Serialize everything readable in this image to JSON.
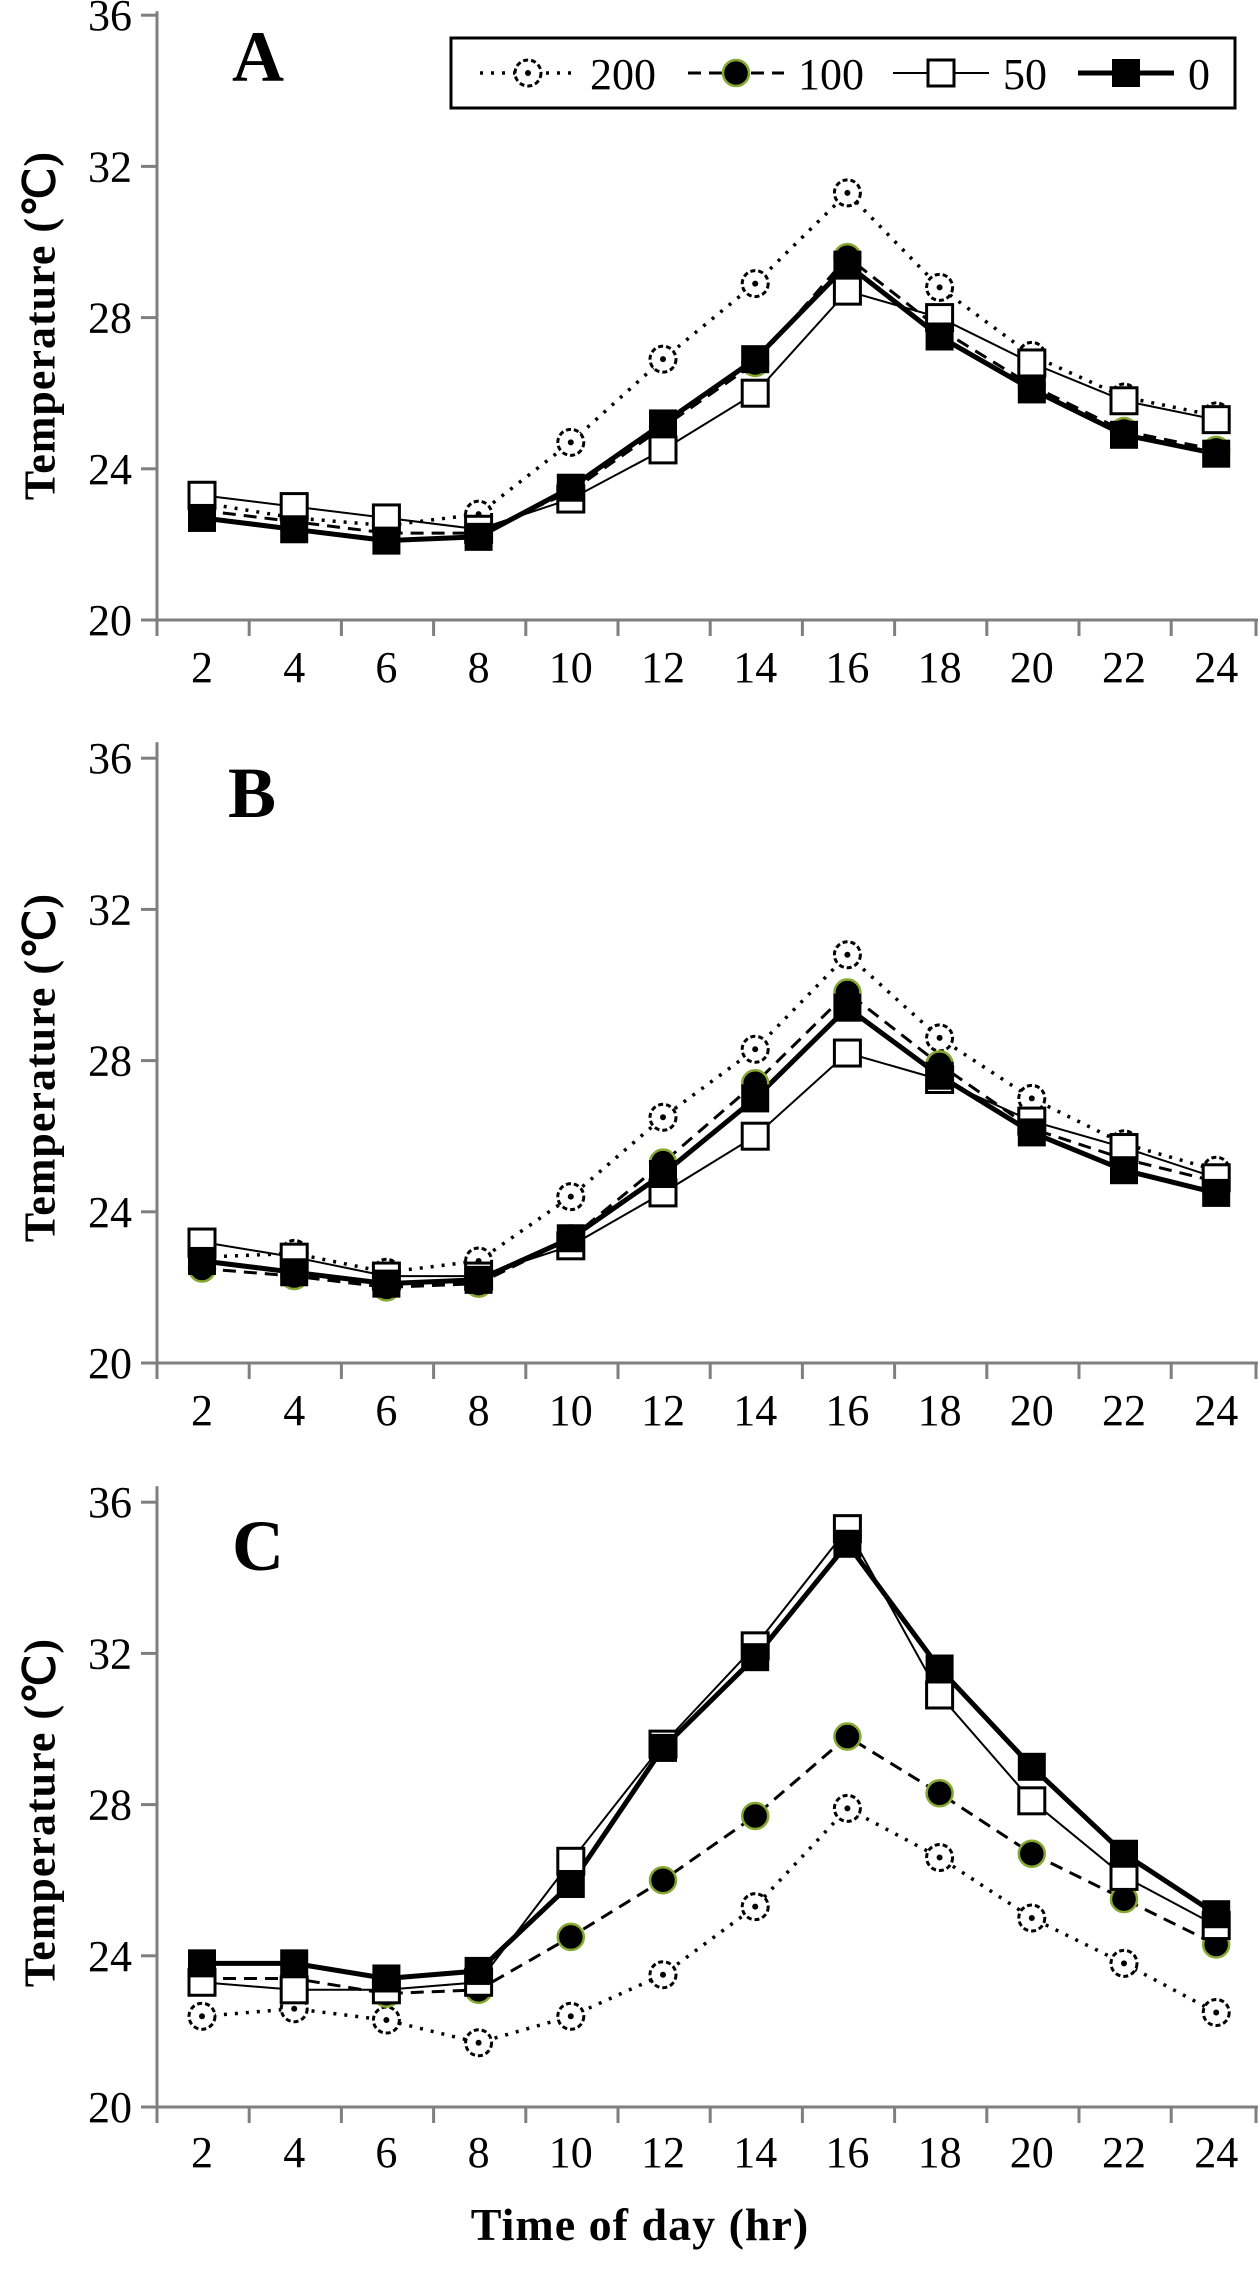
{
  "figure": {
    "background": "#ffffff",
    "axis_color": "#7f7f7f",
    "ink_color": "#000000",
    "marker_accent_color": "#86a832"
  },
  "axes": {
    "y_title": "Temperature (℃)",
    "x_title": "Time of day  (hr)",
    "y_tick_labels": [
      "36",
      "32",
      "28",
      "24",
      "20"
    ],
    "y_ticks": [
      36,
      32,
      28,
      24,
      20
    ],
    "x_tick_labels": [
      "2",
      "4",
      "6",
      "8",
      "10",
      "12",
      "14",
      "16",
      "18",
      "20",
      "22",
      "24"
    ],
    "ylim": [
      20,
      36
    ]
  },
  "legend": {
    "items": [
      {
        "label": "200",
        "series": "200"
      },
      {
        "label": "100",
        "series": "100"
      },
      {
        "label": "50",
        "series": "50"
      },
      {
        "label": "0",
        "series": "0"
      }
    ]
  },
  "panels": {
    "a_letter": "A",
    "b_letter": "B",
    "c_letter": "C"
  },
  "chart_data": [
    {
      "type": "line",
      "panel": "A",
      "xlabel": "Time of day (hr)",
      "ylabel": "Temperature (℃)",
      "ylim": [
        20,
        36
      ],
      "x": [
        2,
        4,
        6,
        8,
        10,
        12,
        14,
        16,
        18,
        20,
        22,
        24
      ],
      "series": [
        {
          "name": "200",
          "line": "dotted",
          "marker": "open-circle-dot",
          "values": [
            23.1,
            22.7,
            22.5,
            22.8,
            24.7,
            26.9,
            28.9,
            31.3,
            28.8,
            27.0,
            25.9,
            25.4
          ]
        },
        {
          "name": "100",
          "line": "dashed",
          "marker": "filled-circle",
          "values": [
            22.9,
            22.6,
            22.3,
            22.3,
            23.4,
            25.1,
            26.8,
            29.6,
            27.7,
            26.2,
            25.0,
            24.5
          ]
        },
        {
          "name": "50",
          "line": "solid-thin",
          "marker": "open-square",
          "values": [
            23.3,
            23.0,
            22.7,
            22.4,
            23.2,
            24.5,
            26.0,
            28.7,
            28.0,
            26.8,
            25.8,
            25.3
          ]
        },
        {
          "name": "0",
          "line": "solid-thick",
          "marker": "filled-square",
          "values": [
            22.7,
            22.4,
            22.1,
            22.2,
            23.5,
            25.2,
            26.9,
            29.4,
            27.5,
            26.1,
            24.9,
            24.4
          ]
        }
      ]
    },
    {
      "type": "line",
      "panel": "B",
      "xlabel": "Time of day (hr)",
      "ylabel": "Temperature (℃)",
      "ylim": [
        20,
        36
      ],
      "x": [
        2,
        4,
        6,
        8,
        10,
        12,
        14,
        16,
        18,
        20,
        22,
        24
      ],
      "series": [
        {
          "name": "200",
          "line": "dotted",
          "marker": "open-circle-dot",
          "values": [
            22.8,
            22.9,
            22.4,
            22.7,
            24.4,
            26.5,
            28.3,
            30.8,
            28.6,
            27.0,
            25.8,
            25.1
          ]
        },
        {
          "name": "100",
          "line": "dashed",
          "marker": "filled-circle",
          "values": [
            22.5,
            22.3,
            22.0,
            22.1,
            23.3,
            25.3,
            27.4,
            29.8,
            27.9,
            26.2,
            25.4,
            24.8
          ]
        },
        {
          "name": "50",
          "line": "solid-thin",
          "marker": "open-square",
          "values": [
            23.2,
            22.8,
            22.3,
            22.3,
            23.1,
            24.5,
            26.0,
            28.2,
            27.5,
            26.4,
            25.7,
            24.9
          ]
        },
        {
          "name": "0",
          "line": "solid-thick",
          "marker": "filled-square",
          "values": [
            22.7,
            22.4,
            22.1,
            22.2,
            23.3,
            25.0,
            27.0,
            29.4,
            27.6,
            26.1,
            25.1,
            24.5
          ]
        }
      ]
    },
    {
      "type": "line",
      "panel": "C",
      "xlabel": "Time of day (hr)",
      "ylabel": "Temperature (℃)",
      "ylim": [
        20,
        36
      ],
      "x": [
        2,
        4,
        6,
        8,
        10,
        12,
        14,
        16,
        18,
        20,
        22,
        24
      ],
      "series": [
        {
          "name": "200",
          "line": "dotted",
          "marker": "open-circle-dot",
          "values": [
            22.4,
            22.6,
            22.3,
            21.7,
            22.4,
            23.5,
            25.3,
            27.9,
            26.6,
            25.0,
            23.8,
            22.5
          ]
        },
        {
          "name": "100",
          "line": "dashed",
          "marker": "filled-circle",
          "values": [
            23.4,
            23.4,
            23.0,
            23.1,
            24.5,
            26.0,
            27.7,
            29.8,
            28.3,
            26.7,
            25.5,
            24.3
          ]
        },
        {
          "name": "50",
          "line": "solid-thin",
          "marker": "open-square",
          "values": [
            23.3,
            23.1,
            23.1,
            23.3,
            26.5,
            29.6,
            32.2,
            35.3,
            30.9,
            28.1,
            26.1,
            24.8
          ]
        },
        {
          "name": "0",
          "line": "solid-thick",
          "marker": "filled-square",
          "values": [
            23.8,
            23.8,
            23.4,
            23.6,
            25.9,
            29.5,
            31.9,
            34.9,
            31.6,
            29.0,
            26.7,
            25.1
          ]
        }
      ]
    }
  ]
}
